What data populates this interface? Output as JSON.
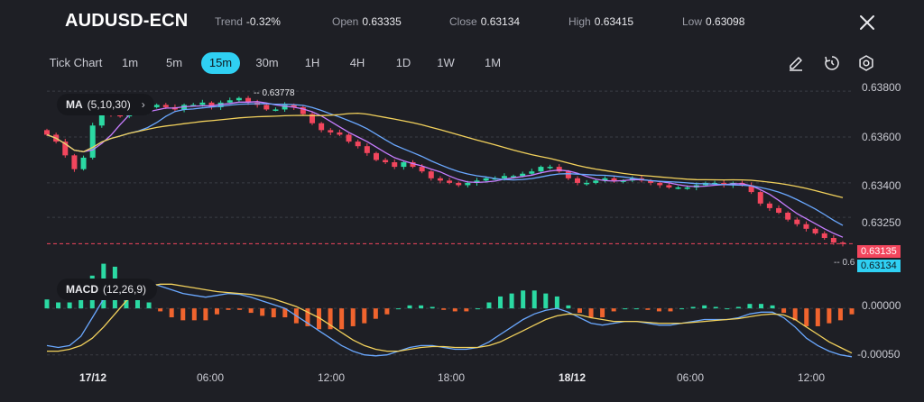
{
  "header": {
    "symbol": "AUDUSD-ECN",
    "trend_label": "Trend",
    "trend_value": "-0.32%",
    "open_label": "Open",
    "open_value": "0.63335",
    "close_label": "Close",
    "close_value": "0.63134",
    "high_label": "High",
    "high_value": "0.63415",
    "low_label": "Low",
    "low_value": "0.63098"
  },
  "toolbar": {
    "timeframes": [
      "Tick Chart",
      "1m",
      "5m",
      "15m",
      "30m",
      "1H",
      "4H",
      "1D",
      "1W",
      "1M"
    ],
    "active": "15m",
    "tools": [
      "pencil-icon",
      "timer-icon",
      "settings-icon"
    ]
  },
  "indicators": {
    "ma_label": "MA",
    "ma_params": "(5,10,30)",
    "macd_label": "MACD",
    "macd_params": "(12,26,9)"
  },
  "colors": {
    "bg": "#1e1f25",
    "up": "#2bd9a3",
    "down": "#f2465d",
    "ma5": "#c77dff",
    "ma10": "#6aa8ff",
    "ma30": "#f2d15c",
    "macd_pos": "#2bd9a3",
    "macd_neg": "#f0642e",
    "accent": "#2fd0f3"
  },
  "chart_data": [
    {
      "type": "candlestick",
      "yticks": [
        "0.63800",
        "0.63600",
        "0.63400",
        "0.63250"
      ],
      "ylim": [
        0.6305,
        0.6382
      ],
      "high_marker": "0.63778",
      "last_price_bid": "0.63135",
      "last_price_ask": "0.63134",
      "low_marker_partial": "0.6",
      "x_labels": [
        "17/12",
        "06:00",
        "12:00",
        "18:00",
        "18/12",
        "06:00",
        "12:00"
      ],
      "close_series": [
        0.6361,
        0.6358,
        0.6352,
        0.6346,
        0.6351,
        0.6365,
        0.6372,
        0.637,
        0.6369,
        0.6372,
        0.6371,
        0.6373,
        0.6374,
        0.6373,
        0.6372,
        0.6374,
        0.6374,
        0.6375,
        0.6373,
        0.6375,
        0.6376,
        0.6377,
        0.6375,
        0.6374,
        0.6372,
        0.6372,
        0.6374,
        0.6373,
        0.637,
        0.6366,
        0.6363,
        0.6362,
        0.6361,
        0.6358,
        0.6356,
        0.6353,
        0.635,
        0.6349,
        0.6347,
        0.6349,
        0.6347,
        0.6345,
        0.6342,
        0.6341,
        0.634,
        0.6339,
        0.634,
        0.6341,
        0.6342,
        0.6342,
        0.6343,
        0.6343,
        0.6344,
        0.6345,
        0.6347,
        0.6347,
        0.6345,
        0.6342,
        0.634,
        0.634,
        0.6341,
        0.6342,
        0.6341,
        0.6341,
        0.6342,
        0.6341,
        0.634,
        0.6339,
        0.6338,
        0.6338,
        0.6338,
        0.6339,
        0.634,
        0.634,
        0.6339,
        0.634,
        0.6339,
        0.6336,
        0.6331,
        0.6329,
        0.6327,
        0.6324,
        0.6322,
        0.632,
        0.6318,
        0.6316,
        0.6314,
        0.63135
      ]
    },
    {
      "type": "macd",
      "params": "(12,26,9)",
      "yticks": [
        "0.00000",
        "-0.00050"
      ],
      "ylim": [
        -0.00058,
        0.00035
      ],
      "macd": [
        -0.0004,
        -0.00042,
        -0.0004,
        -0.0003,
        -0.0001,
        0.0001,
        0.00022,
        0.00028,
        0.0003,
        0.00028,
        0.00024,
        0.0002,
        0.00016,
        0.00014,
        0.00012,
        0.00014,
        0.00016,
        0.00015,
        0.00012,
        8e-05,
        4e-05,
        0.0,
        -8e-05,
        -0.00016,
        -0.00024,
        -0.00032,
        -0.0004,
        -0.00046,
        -0.0005,
        -0.00051,
        -0.0005,
        -0.00046,
        -0.00042,
        -0.0004,
        -0.0004,
        -0.00042,
        -0.00044,
        -0.00044,
        -0.00042,
        -0.00036,
        -0.00028,
        -0.0002,
        -0.00012,
        -6e-05,
        -2e-05,
        0.0,
        -4e-05,
        -0.0001,
        -0.00016,
        -0.00018,
        -0.00016,
        -0.00014,
        -0.00014,
        -0.00016,
        -0.00018,
        -0.00018,
        -0.00016,
        -0.00014,
        -0.00012,
        -0.00012,
        -0.00012,
        -0.0001,
        -6e-05,
        -4e-05,
        -4e-05,
        -0.0001,
        -0.0002,
        -0.00032,
        -0.0004,
        -0.00046,
        -0.0005,
        -0.00052
      ],
      "signal": [
        -0.00046,
        -0.00046,
        -0.00044,
        -0.0004,
        -0.00032,
        -0.0002,
        -6e-05,
        8e-05,
        0.00018,
        0.00024,
        0.00026,
        0.00026,
        0.00024,
        0.00022,
        0.0002,
        0.00018,
        0.00017,
        0.00016,
        0.00015,
        0.00013,
        0.0001,
        6e-05,
        2e-05,
        -4e-05,
        -0.0001,
        -0.00018,
        -0.00026,
        -0.00034,
        -0.0004,
        -0.00044,
        -0.00046,
        -0.00046,
        -0.00044,
        -0.00042,
        -0.00041,
        -0.00041,
        -0.00042,
        -0.00042,
        -0.00042,
        -0.0004,
        -0.00036,
        -0.0003,
        -0.00024,
        -0.00018,
        -0.00012,
        -8e-05,
        -6e-05,
        -7e-05,
        -0.0001,
        -0.00012,
        -0.00014,
        -0.00014,
        -0.00014,
        -0.00015,
        -0.00016,
        -0.00016,
        -0.00016,
        -0.00015,
        -0.00014,
        -0.00013,
        -0.00012,
        -0.00011,
        -9e-05,
        -7e-05,
        -6e-05,
        -7e-05,
        -0.00012,
        -0.0002,
        -0.00028,
        -0.00036,
        -0.00042,
        -0.00048
      ]
    }
  ]
}
